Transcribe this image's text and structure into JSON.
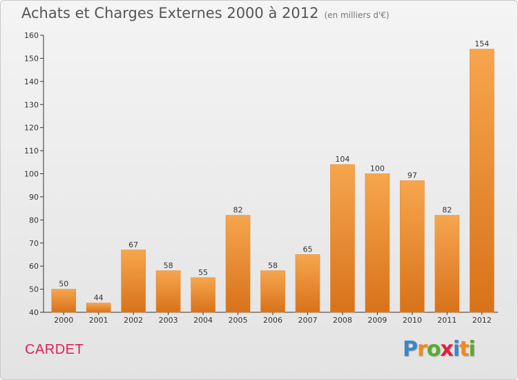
{
  "title": "Achats et Charges Externes 2000 à 2012",
  "subtitle": "(en milliers d'€)",
  "city": "CARDET",
  "logo": {
    "text": "Proxiti",
    "letters": [
      {
        "ch": "P",
        "color": "#3a86c8"
      },
      {
        "ch": "r",
        "color": "#f08a1c"
      },
      {
        "ch": "o",
        "color": "#5aaa30"
      },
      {
        "ch": "x",
        "color": "#e02040"
      },
      {
        "ch": "i",
        "color": "#3a86c8"
      },
      {
        "ch": "t",
        "color": "#f08a1c"
      },
      {
        "ch": "i",
        "color": "#5aaa30"
      }
    ]
  },
  "colors": {
    "bar_light": "#f6a64e",
    "bar_dark": "#d8721a",
    "bar_edge": "#e8862a",
    "title": "#555555",
    "city": "#e0205a"
  },
  "chart_data": {
    "type": "bar",
    "title": "Achats et Charges Externes 2000 à 2012",
    "subtitle": "(en milliers d'€)",
    "categories": [
      "2000",
      "2001",
      "2002",
      "2003",
      "2004",
      "2005",
      "2006",
      "2007",
      "2008",
      "2009",
      "2010",
      "2011",
      "2012"
    ],
    "values": [
      50,
      44,
      67,
      58,
      55,
      82,
      58,
      65,
      104,
      100,
      97,
      82,
      154
    ],
    "ylim": [
      40,
      160
    ],
    "yticks": [
      40,
      50,
      60,
      70,
      80,
      90,
      100,
      110,
      120,
      130,
      140,
      150,
      160
    ],
    "grid": false,
    "legend": "none"
  }
}
